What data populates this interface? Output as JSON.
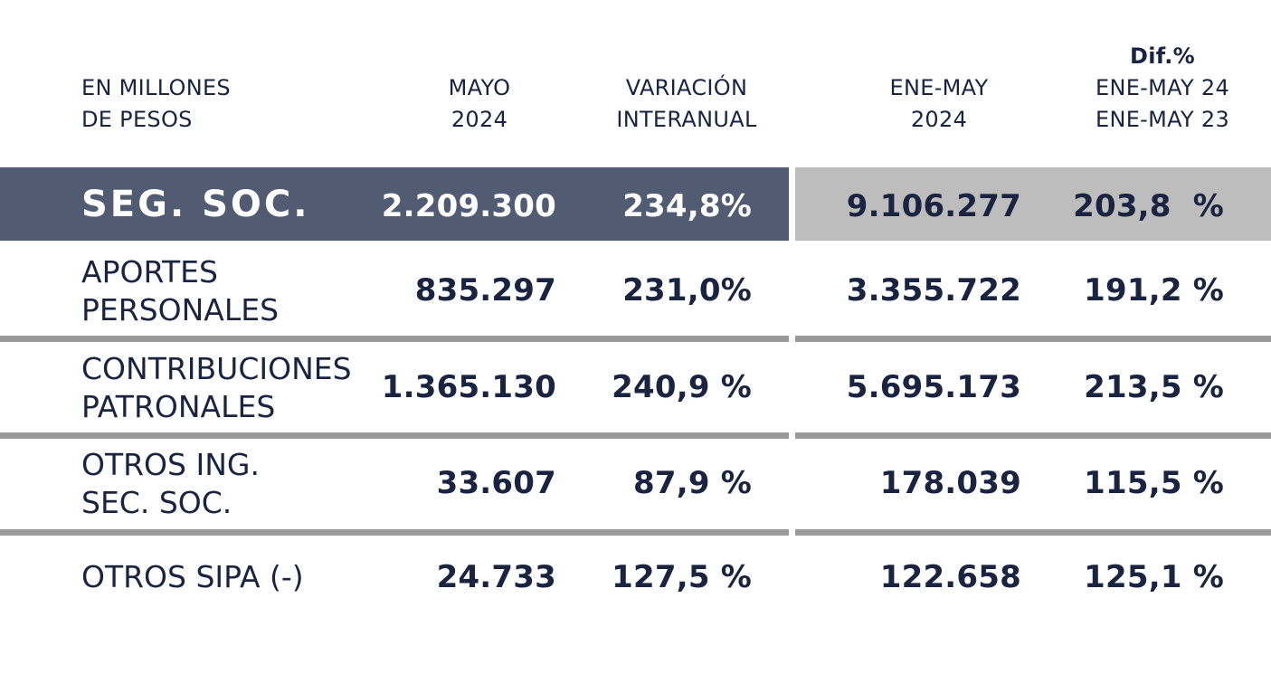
{
  "header": {
    "label_line1": "EN MILLONES",
    "label_line2": "DE PESOS",
    "col1_line1": "MAYO",
    "col1_line2": "2024",
    "col2_line1": "VARIACIÓN",
    "col2_line2": "INTERANUAL",
    "col3_line1": "ENE-MAY",
    "col3_line2": "2024",
    "col4_line1": "Dif.%",
    "col4_line2": "ENE-MAY 24",
    "col4_line3": "ENE-MAY 23"
  },
  "rows": [
    {
      "label_line1": "SEG. SOC.",
      "label_line2": "",
      "mayo": "2.209.300",
      "var": "234,8%",
      "acum": "9.106.277",
      "dif": "203,8  %"
    },
    {
      "label_line1": "APORTES",
      "label_line2": "PERSONALES",
      "mayo": "835.297",
      "var": "231,0%",
      "acum": "3.355.722",
      "dif": "191,2 %"
    },
    {
      "label_line1": "CONTRIBUCIONES",
      "label_line2": "PATRONALES",
      "mayo": "1.365.130",
      "var": "240,9 %",
      "acum": "5.695.173",
      "dif": "213,5 %"
    },
    {
      "label_line1": "OTROS ING.",
      "label_line2": "SEC. SOC.",
      "mayo": "33.607",
      "var": "87,9 %",
      "acum": "178.039",
      "dif": "115,5 %"
    },
    {
      "label_line1": "OTROS SIPA (-)",
      "label_line2": "",
      "mayo": "24.733",
      "var": "127,5 %",
      "acum": "122.658",
      "dif": "125,1 %"
    }
  ],
  "colors": {
    "text": "#1a2340",
    "highlight_band": "#515c72",
    "highlight_band_right": "#bdbdbd",
    "divider": "#9a9a9a"
  }
}
